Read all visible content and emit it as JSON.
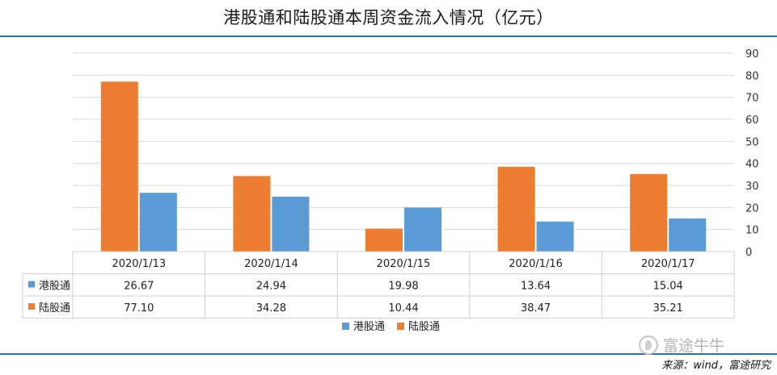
{
  "title": "港股通和陆股通本周资金流入情况（亿元）",
  "source": "来源：wind，富途研究",
  "watermark": "富途牛牛",
  "colors": {
    "港股通": "#5b9bd5",
    "陆股通": "#ed7d31",
    "rule": "#2e6faa"
  },
  "chart_data": {
    "type": "bar",
    "categories": [
      "2020/1/13",
      "2020/1/14",
      "2020/1/15",
      "2020/1/16",
      "2020/1/17"
    ],
    "series": [
      {
        "name": "港股通",
        "values": [
          26.67,
          24.94,
          19.98,
          13.64,
          15.04
        ],
        "labels": [
          "26.67",
          "24.94",
          "19.98",
          "13.64",
          "15.04"
        ]
      },
      {
        "name": "陆股通",
        "values": [
          77.1,
          34.28,
          10.44,
          38.47,
          35.21
        ],
        "labels": [
          "77.10",
          "34.28",
          "10.44",
          "38.47",
          "35.21"
        ]
      }
    ],
    "bar_order": [
      "陆股通",
      "港股通"
    ],
    "ylim": [
      0,
      90
    ],
    "yticks": [
      0,
      10,
      20,
      30,
      40,
      50,
      60,
      70,
      80,
      90
    ],
    "y_axis_side": "right",
    "grid": true,
    "legend_position": "bottom",
    "data_table": true
  }
}
